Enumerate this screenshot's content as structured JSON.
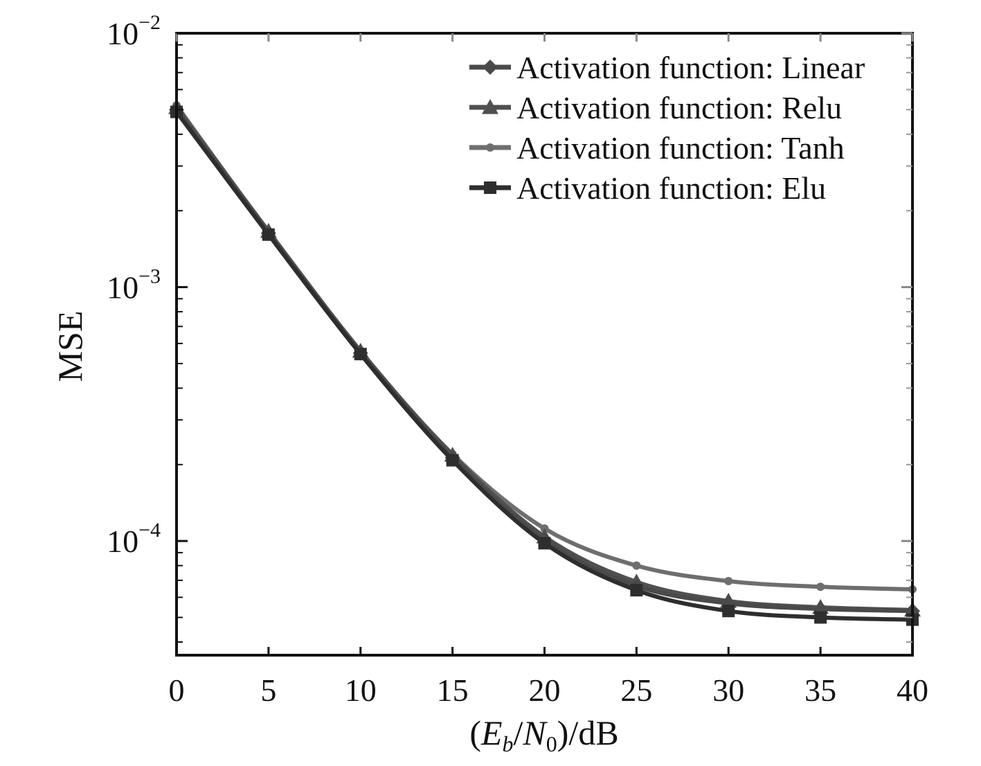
{
  "chart_data": {
    "type": "line",
    "title": "",
    "xlabel": {
      "open": "(",
      "E": "E",
      "b": "b",
      "slash": "/",
      "N": "N",
      "zero": "0",
      "close": ")/dB"
    },
    "ylabel": "MSE",
    "yscale": "log",
    "xlim": [
      0,
      40
    ],
    "ylim": [
      3.55e-05,
      0.01
    ],
    "x_ticks": [
      0,
      5,
      10,
      15,
      20,
      25,
      30,
      35,
      40
    ],
    "x_tick_labels": [
      "0",
      "5",
      "10",
      "15",
      "20",
      "25",
      "30",
      "35",
      "40"
    ],
    "y_tick_labels": [
      {
        "value": 0.01,
        "base": "10",
        "exp": "−2"
      },
      {
        "value": 0.001,
        "base": "10",
        "exp": "−3"
      },
      {
        "value": 0.0001,
        "base": "10",
        "exp": "−4"
      }
    ],
    "grid": false,
    "legend_position": "top-right",
    "x": [
      0,
      5,
      10,
      15,
      20,
      25,
      30,
      35,
      40
    ],
    "series": [
      {
        "name": "Activation function: Linear",
        "marker": "diamond",
        "color": "#4a4a4a",
        "values": [
          0.005,
          0.00163,
          0.00055,
          0.000213,
          0.000101,
          6.65e-05,
          5.68e-05,
          5.4e-05,
          5.3e-05
        ]
      },
      {
        "name": "Activation function: Relu",
        "marker": "triangle",
        "color": "#505050",
        "values": [
          0.0051,
          0.00166,
          0.00056,
          0.000218,
          0.000104,
          6.9e-05,
          5.8e-05,
          5.48e-05,
          5.35e-05
        ]
      },
      {
        "name": "Activation function: Tanh",
        "marker": "dot",
        "color": "#6e6e6e",
        "values": [
          0.0052,
          0.00165,
          0.00056,
          0.00022,
          0.000112,
          8e-05,
          6.95e-05,
          6.6e-05,
          6.45e-05
        ]
      },
      {
        "name": "Activation function: Elu",
        "marker": "square",
        "color": "#2e2e2e",
        "values": [
          0.0049,
          0.00161,
          0.000545,
          0.000208,
          9.8e-05,
          6.4e-05,
          5.3e-05,
          5e-05,
          4.9e-05
        ]
      }
    ]
  }
}
